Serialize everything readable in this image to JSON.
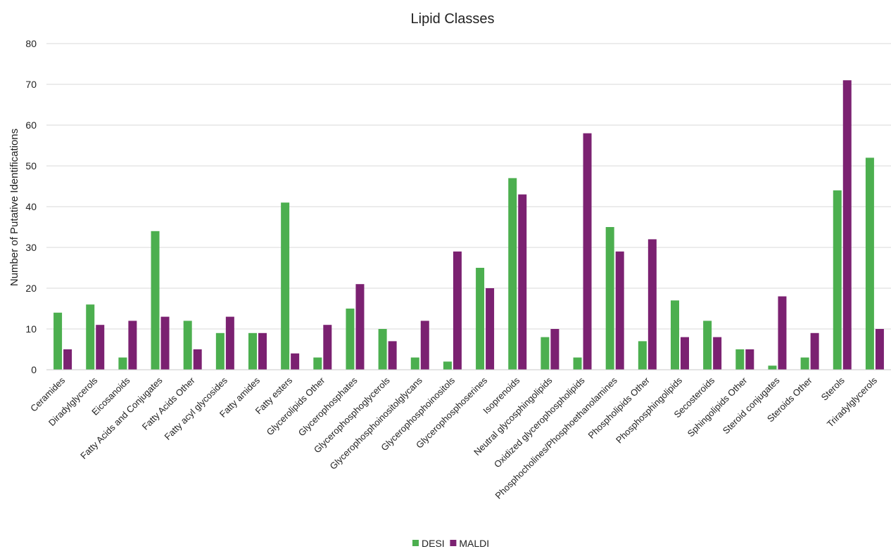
{
  "chart_data": {
    "type": "bar",
    "title": "Lipid Classes",
    "xlabel": "",
    "ylabel": "Number of Putative Identifications",
    "ylim": [
      0,
      80
    ],
    "yticks": [
      0,
      10,
      20,
      30,
      40,
      50,
      60,
      70,
      80
    ],
    "grid": true,
    "legend_position": "bottom",
    "categories": [
      "Ceramides",
      "Diradylglycerols",
      "Eicosanoids",
      "Fatty Acids and Conjugates",
      "Fatty Acids Other",
      "Fatty acyl glycosides",
      "Fatty amides",
      "Fatty esters",
      "Glycerolipids Other",
      "Glycerophosphates",
      "Glycerophosphoglycerols",
      "Glycerophosphoinositolglycans",
      "Glycerophosphoinositols",
      "Glycerophosphoserines",
      "Isoprenoids",
      "Neutral glycosphingolipids",
      "Oxidized glycerophospholipids",
      "Phosphocholines/Phosphoethanolamines",
      "Phospholipids Other",
      "Phosphosphingolipids",
      "Secosteroids",
      "Sphingolipids Other",
      "Steroid conjugates",
      "Steroids Other",
      "Sterols",
      "Triradylglycerols"
    ],
    "series": [
      {
        "name": "DESI",
        "color": "#4caf4f",
        "values": [
          14,
          16,
          3,
          34,
          12,
          9,
          9,
          41,
          3,
          15,
          10,
          3,
          2,
          25,
          47,
          8,
          3,
          35,
          7,
          17,
          12,
          5,
          1,
          3,
          44,
          52
        ]
      },
      {
        "name": "MALDI",
        "color": "#7b2171",
        "values": [
          5,
          11,
          12,
          13,
          5,
          13,
          9,
          4,
          11,
          21,
          7,
          12,
          29,
          20,
          43,
          10,
          58,
          29,
          32,
          8,
          8,
          5,
          18,
          9,
          71,
          10
        ]
      }
    ]
  }
}
